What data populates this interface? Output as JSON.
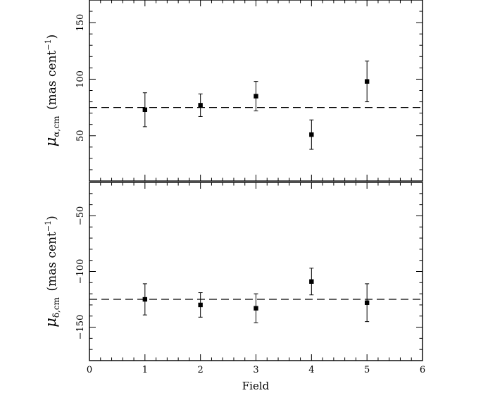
{
  "chart_data": [
    {
      "type": "scatter",
      "panel": "top",
      "ylabel": {
        "symbol": "μ",
        "subscript": "α,cm",
        "unit": "(mas cent",
        "unit_exp": "−1",
        "unit_close": ")"
      },
      "xlabel": "",
      "xlim": [
        0,
        6
      ],
      "ylim": [
        10,
        170
      ],
      "x_ticks_major": [
        0,
        1,
        2,
        3,
        4,
        5,
        6
      ],
      "x_ticks_minor_step": 0.2,
      "y_ticks_major": [
        50,
        100,
        150
      ],
      "y_tick_labels": [
        "50",
        "100",
        "150"
      ],
      "y_ticks_minor_step": 10,
      "x_tick_labels_shown": false,
      "reference_line": 75,
      "series": [
        {
          "x": [
            1,
            2,
            3,
            4,
            5
          ],
          "y": [
            73,
            77,
            85,
            51,
            98
          ],
          "err_low": [
            15,
            10,
            13,
            13,
            18
          ],
          "err_high": [
            15,
            10,
            13,
            13,
            18
          ]
        }
      ]
    },
    {
      "type": "scatter",
      "panel": "bottom",
      "ylabel": {
        "symbol": "μ",
        "subscript": "δ,cm",
        "unit": "(mas cent",
        "unit_exp": "−1",
        "unit_close": ")"
      },
      "xlabel": "Field",
      "xlim": [
        0,
        6
      ],
      "ylim": [
        -180,
        -20
      ],
      "x_ticks_major": [
        0,
        1,
        2,
        3,
        4,
        5,
        6
      ],
      "x_tick_labels": [
        "0",
        "1",
        "2",
        "3",
        "4",
        "5",
        "6"
      ],
      "x_ticks_minor_step": 0.2,
      "y_ticks_major": [
        -150,
        -100,
        -50
      ],
      "y_tick_labels": [
        "−150",
        "−100",
        "−50"
      ],
      "y_ticks_minor_step": 10,
      "x_tick_labels_shown": true,
      "reference_line": -125,
      "series": [
        {
          "x": [
            1,
            2,
            3,
            4,
            5
          ],
          "y": [
            -125,
            -130,
            -133,
            -109,
            -128
          ],
          "err_low": [
            14,
            11,
            13,
            12,
            17
          ],
          "err_high": [
            14,
            11,
            13,
            12,
            17
          ]
        }
      ]
    }
  ]
}
